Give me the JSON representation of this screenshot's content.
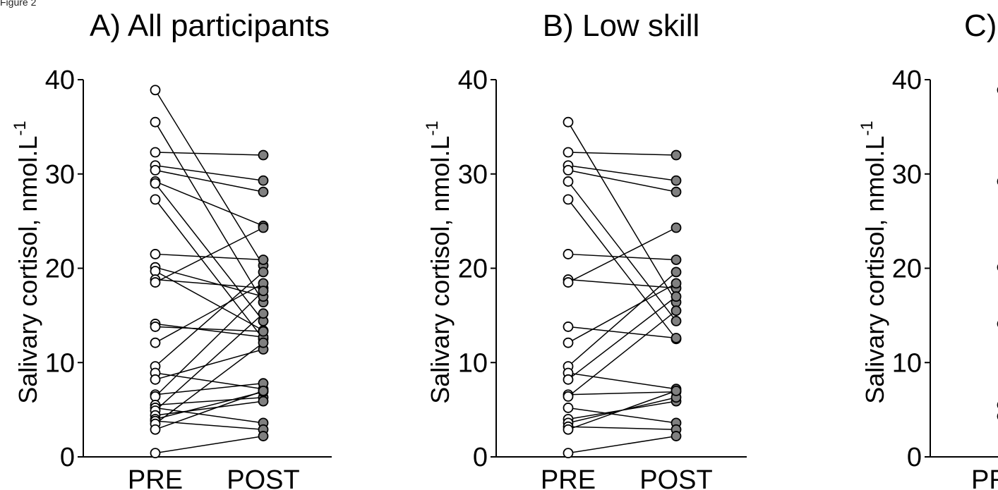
{
  "figure_label": "Figure 2",
  "y_axis_label_text": "Salivary cortisol, nmol.L",
  "y_axis_label_sup": "-1",
  "chart_data": [
    {
      "type": "line",
      "title": "A) All participants",
      "xlabel": "",
      "ylabel": "Salivary cortisol, nmol.L-1",
      "categories": [
        "PRE",
        "POST"
      ],
      "ylim": [
        0,
        40
      ],
      "yticks": [
        "0",
        "10",
        "20",
        "30",
        "40"
      ],
      "grid": false,
      "marker_fill": {
        "PRE": "#ffffff",
        "POST": "#808080"
      },
      "pairs": [
        [
          38.9,
          20.3
        ],
        [
          35.5,
          16.4
        ],
        [
          32.3,
          32.0
        ],
        [
          30.9,
          29.3
        ],
        [
          30.4,
          28.1
        ],
        [
          29.2,
          24.5
        ],
        [
          29.0,
          14.4
        ],
        [
          27.3,
          12.5
        ],
        [
          21.5,
          20.9
        ],
        [
          20.1,
          17.0
        ],
        [
          19.7,
          13.4
        ],
        [
          18.8,
          17.9
        ],
        [
          18.5,
          24.3
        ],
        [
          14.1,
          12.7
        ],
        [
          13.8,
          13.3
        ],
        [
          12.1,
          18.4
        ],
        [
          9.6,
          19.6
        ],
        [
          8.9,
          7.2
        ],
        [
          8.2,
          11.4
        ],
        [
          6.6,
          7.8
        ],
        [
          6.4,
          17.6
        ],
        [
          5.5,
          6.3
        ],
        [
          5.2,
          3.6
        ],
        [
          4.9,
          15.2
        ],
        [
          4.4,
          5.9
        ],
        [
          4.0,
          6.9
        ],
        [
          3.8,
          2.9
        ],
        [
          3.5,
          12.1
        ],
        [
          2.9,
          7.0
        ],
        [
          0.4,
          2.2
        ]
      ]
    },
    {
      "type": "line",
      "title": "B) Low skill",
      "xlabel": "",
      "ylabel": "Salivary cortisol, nmol.L-1",
      "categories": [
        "PRE",
        "POST"
      ],
      "ylim": [
        0,
        40
      ],
      "yticks": [
        "0",
        "10",
        "20",
        "30",
        "40"
      ],
      "grid": false,
      "marker_fill": {
        "PRE": "#ffffff",
        "POST": "#808080"
      },
      "pairs": [
        [
          35.5,
          16.4
        ],
        [
          32.3,
          32.0
        ],
        [
          30.9,
          29.3
        ],
        [
          30.4,
          28.1
        ],
        [
          29.2,
          14.4
        ],
        [
          27.3,
          12.5
        ],
        [
          21.5,
          20.9
        ],
        [
          18.8,
          17.9
        ],
        [
          18.5,
          24.3
        ],
        [
          13.8,
          12.6
        ],
        [
          12.1,
          18.4
        ],
        [
          9.6,
          19.6
        ],
        [
          8.9,
          7.2
        ],
        [
          8.2,
          17.0
        ],
        [
          6.6,
          6.9
        ],
        [
          6.4,
          15.5
        ],
        [
          5.2,
          3.6
        ],
        [
          4.0,
          5.9
        ],
        [
          3.6,
          6.3
        ],
        [
          3.2,
          2.9
        ],
        [
          2.9,
          7.0
        ],
        [
          0.4,
          2.2
        ]
      ]
    },
    {
      "type": "line",
      "title": "C)",
      "xlabel": "",
      "ylabel": "Salivary cortisol, nmol.L-1",
      "categories": [
        "PR"
      ],
      "ylim": [
        0,
        40
      ],
      "yticks": [
        "0",
        "10",
        "20",
        "30",
        "40"
      ],
      "grid": false,
      "marker_fill": {
        "PRE": "#ffffff"
      },
      "points_pre": [
        38.9,
        29.2,
        20.1,
        14.1,
        5.5,
        4.3
      ]
    }
  ]
}
